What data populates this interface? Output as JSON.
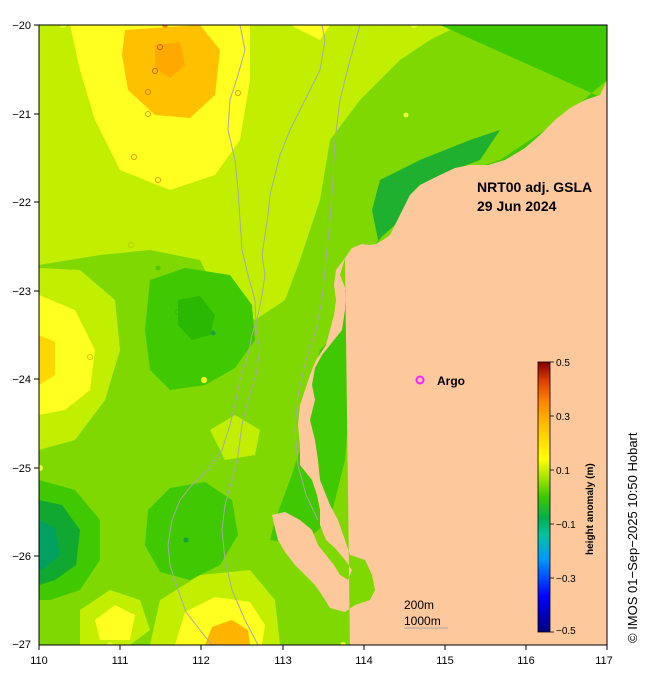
{
  "map": {
    "title_line1": "NRT00 adj. GSLA",
    "title_line2": "29 Jun 2024",
    "legend_label": "Argo",
    "scale_200m": "200m",
    "scale_1000m": "1000m",
    "credit": "© IMOS 01−Sep−2025 10:50 Hobart",
    "x_ticks": [
      "110",
      "111",
      "112",
      "113",
      "114",
      "115",
      "116",
      "117"
    ],
    "y_ticks": [
      "−20",
      "−21",
      "−22",
      "−23",
      "−24",
      "−25",
      "−26",
      "−27"
    ],
    "colors": {
      "land": "#fdc89c",
      "base_anomaly": "#7fd900",
      "argo_marker": "#ff22ff",
      "bathymetry": "#a8a8a8"
    }
  },
  "colorbar": {
    "label": "height anomaly (m)",
    "ticks": [
      "0.5",
      "0.3",
      "0.1",
      "−0.1",
      "−0.3",
      "−0.5"
    ],
    "range": [
      -0.5,
      0.5
    ]
  }
}
